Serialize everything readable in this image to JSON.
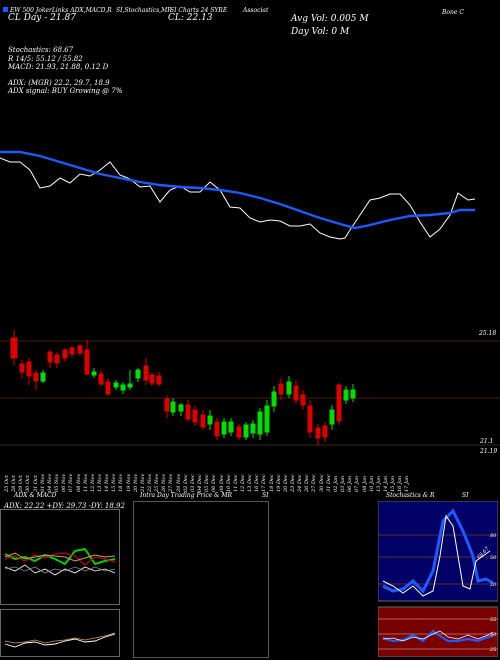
{
  "header": {
    "line1": [
      "EW 500 JokerLinks ADX,MACD,R",
      "SI,Stochastics,MR",
      "SI Charts 24 SYRE",
      "Associat",
      "Bone C"
    ],
    "close_label": "CL: 22.13",
    "day_label": "CL Day - 21.87",
    "avg_vol": "Avg Vol: 0.005 M",
    "day_vol": "Day Vol: 0   M",
    "stochastics": "Stochastics: 68.67",
    "stoch_rsi": "R         14/5: 55.12 / 55.82",
    "macd": "MACD: 21.93,  21.88,  0.12  D",
    "adx": "ADX:                        (MGR) 22.2,  29.7,  18.9",
    "adx_signal": "ADX  signal:                       BUY Growing @ 7%"
  },
  "price_axis": {
    "upper_label": "25.18",
    "lower_label_1": "21.1",
    "lower_label_2": "21.19"
  },
  "x_dates": [
    "25 Oct",
    "28 Oct",
    "29 Oct",
    "30 Oct",
    "31 Oct",
    "01 Nov",
    "04 Nov",
    "05 Nov",
    "06 Nov",
    "07 Nov",
    "08 Nov",
    "11 Nov",
    "12 Nov",
    "13 Nov",
    "14 Nov",
    "15 Nov",
    "18 Nov",
    "19 Nov",
    "20 Nov",
    "21 Nov",
    "22 Nov",
    "25 Nov",
    "26 Nov",
    "27 Nov",
    "29 Nov",
    "02 Dec",
    "03 Dec",
    "04 Dec",
    "05 Dec",
    "06 Dec",
    "09 Dec",
    "10 Dec",
    "11 Dec",
    "12 Dec",
    "13 Dec",
    "16 Dec",
    "17 Dec",
    "18 Dec",
    "19 Dec",
    "20 Dec",
    "23 Dec",
    "24 Dec",
    "26 Dec",
    "27 Dec",
    "30 Dec",
    "31 Dec",
    "02 Jan",
    "03 Jan",
    "06 Jan",
    "07 Jan",
    "08 Jan",
    "10 Jan",
    "13 Jan",
    "14 Jan",
    "15 Jan",
    "16 Jan",
    "17 Jan"
  ],
  "bottom_panels": {
    "adx_title": "ADX  & MACD",
    "adx_values": "ADX: 22.22  +DY: 29.73 -DY: 18.92",
    "intra_title": "Intra  Day Trading Price  & MR",
    "intra_title_2": "SI",
    "stoch_title": "Stochastics & R",
    "stoch_title_2": "SI",
    "stoch_levels": [
      "80",
      "50",
      "20"
    ],
    "rsi_levels": [
      "55",
      "50",
      "25"
    ],
    "stoch_last": "68.67",
    "rsi_last": "55"
  },
  "colors": {
    "background": "#000000",
    "ma_line": "#1e5bff",
    "bull": "#00e000",
    "bear": "#e00000",
    "rsi_bg": "#7a0000",
    "stoch_bg": "#000066"
  }
}
